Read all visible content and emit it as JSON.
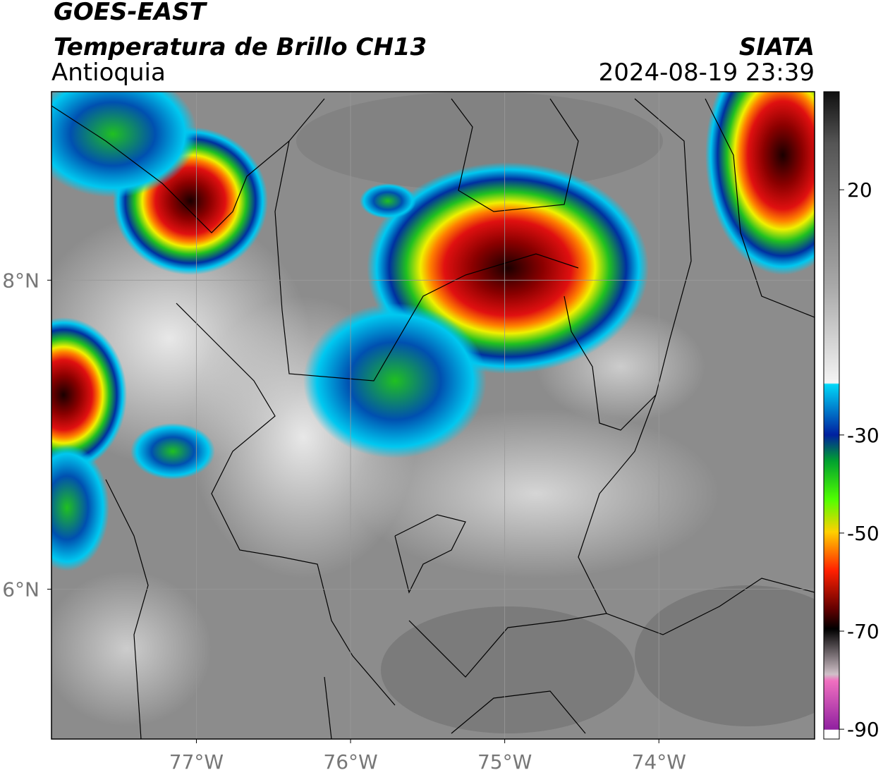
{
  "header": {
    "satellite": "GOES-EAST",
    "product": "Temperatura de Brillo CH13",
    "region": "Antioquia",
    "source": "SIATA",
    "datetime": "2024-08-19 23:39"
  },
  "map": {
    "xlim": [
      -77.94,
      -72.99
    ],
    "ylim": [
      5.03,
      9.22
    ],
    "xticks": [
      {
        "value": -77,
        "label": "77°W"
      },
      {
        "value": -76,
        "label": "76°W"
      },
      {
        "value": -75,
        "label": "75°W"
      },
      {
        "value": -74,
        "label": "74°W"
      }
    ],
    "yticks": [
      {
        "value": 8,
        "label": "8°N"
      },
      {
        "value": 6,
        "label": "6°N"
      }
    ],
    "grid": true
  },
  "colorbar": {
    "lim": [
      -92,
      40
    ],
    "ticks": [
      20,
      -30,
      -50,
      -70,
      -90
    ]
  }
}
